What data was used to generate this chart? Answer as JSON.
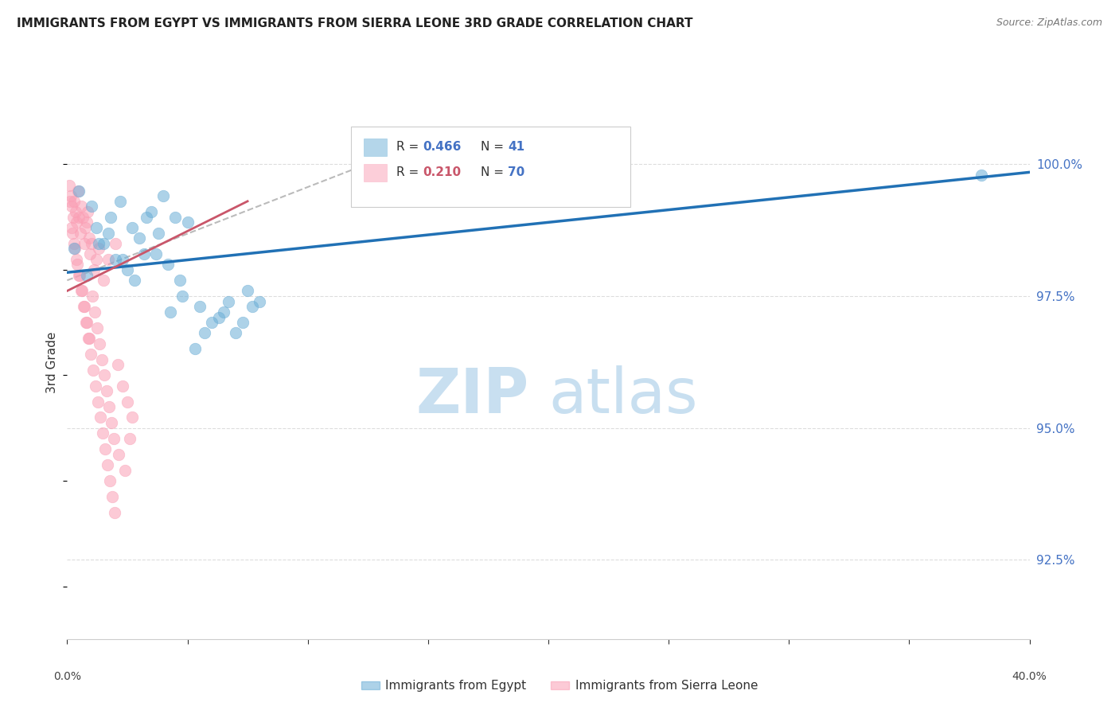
{
  "title": "IMMIGRANTS FROM EGYPT VS IMMIGRANTS FROM SIERRA LEONE 3RD GRADE CORRELATION CHART",
  "source": "Source: ZipAtlas.com",
  "ylabel": "3rd Grade",
  "x_range": [
    0.0,
    40.0
  ],
  "y_range": [
    91.0,
    101.5
  ],
  "legend_label_blue": "Immigrants from Egypt",
  "legend_label_pink": "Immigrants from Sierra Leone",
  "blue_color": "#6baed6",
  "pink_color": "#fa9fb5",
  "blue_line_color": "#2171b5",
  "pink_line_color": "#c9566a",
  "watermark_zip": "ZIP",
  "watermark_atlas": "atlas",
  "watermark_color_zip": "#c8dff0",
  "watermark_color_atlas": "#c8dff0",
  "blue_scatter_x": [
    0.5,
    1.0,
    1.2,
    1.5,
    1.8,
    2.0,
    2.2,
    2.5,
    2.8,
    3.0,
    3.2,
    3.5,
    3.8,
    4.0,
    4.2,
    4.5,
    4.8,
    5.0,
    5.5,
    6.0,
    6.5,
    7.0,
    7.5,
    8.0,
    0.3,
    0.8,
    1.3,
    1.7,
    2.3,
    2.7,
    3.3,
    3.7,
    4.3,
    4.7,
    5.3,
    5.7,
    6.3,
    6.7,
    7.3,
    7.7,
    38.0
  ],
  "blue_scatter_y": [
    99.5,
    99.2,
    98.8,
    98.5,
    99.0,
    98.2,
    99.3,
    98.0,
    97.8,
    98.6,
    98.3,
    99.1,
    98.7,
    99.4,
    98.1,
    99.0,
    97.5,
    98.9,
    97.3,
    97.0,
    97.2,
    96.8,
    97.6,
    97.4,
    98.4,
    97.9,
    98.5,
    98.7,
    98.2,
    98.8,
    99.0,
    98.3,
    97.2,
    97.8,
    96.5,
    96.8,
    97.1,
    97.4,
    97.0,
    97.3,
    99.8
  ],
  "pink_scatter_x": [
    0.1,
    0.15,
    0.2,
    0.25,
    0.3,
    0.35,
    0.4,
    0.45,
    0.5,
    0.55,
    0.6,
    0.65,
    0.7,
    0.75,
    0.8,
    0.85,
    0.9,
    0.95,
    1.0,
    1.1,
    1.2,
    1.3,
    1.5,
    1.7,
    2.0,
    0.12,
    0.22,
    0.32,
    0.42,
    0.52,
    0.62,
    0.72,
    0.82,
    0.92,
    1.05,
    1.15,
    1.25,
    1.35,
    1.45,
    1.55,
    1.65,
    1.75,
    1.85,
    1.95,
    2.1,
    2.3,
    2.5,
    2.7,
    0.18,
    0.28,
    0.38,
    0.48,
    0.58,
    0.68,
    0.78,
    0.88,
    0.98,
    1.08,
    1.18,
    1.28,
    1.38,
    1.48,
    1.58,
    1.68,
    1.78,
    1.88,
    1.98,
    2.15,
    2.4,
    2.6
  ],
  "pink_scatter_y": [
    99.6,
    99.4,
    99.2,
    99.0,
    99.3,
    99.1,
    98.9,
    99.5,
    99.0,
    98.7,
    99.2,
    99.0,
    98.5,
    98.8,
    98.9,
    99.1,
    98.6,
    98.3,
    98.5,
    98.0,
    98.2,
    98.4,
    97.8,
    98.2,
    98.5,
    99.3,
    98.7,
    98.4,
    98.1,
    97.9,
    97.6,
    97.3,
    97.0,
    96.7,
    97.5,
    97.2,
    96.9,
    96.6,
    96.3,
    96.0,
    95.7,
    95.4,
    95.1,
    94.8,
    96.2,
    95.8,
    95.5,
    95.2,
    98.8,
    98.5,
    98.2,
    97.9,
    97.6,
    97.3,
    97.0,
    96.7,
    96.4,
    96.1,
    95.8,
    95.5,
    95.2,
    94.9,
    94.6,
    94.3,
    94.0,
    93.7,
    93.4,
    94.5,
    94.2,
    94.8
  ],
  "blue_line_x": [
    0.0,
    40.0
  ],
  "blue_line_y": [
    97.95,
    99.85
  ],
  "pink_line_x": [
    0.0,
    7.5
  ],
  "pink_line_y": [
    97.6,
    99.3
  ],
  "dash_line_x": [
    0.0,
    13.0
  ],
  "dash_line_y": [
    97.8,
    100.1
  ],
  "yticks": [
    92.5,
    95.0,
    97.5,
    100.0
  ],
  "ytick_labels": [
    "92.5%",
    "95.0%",
    "97.5%",
    "100.0%"
  ],
  "xticks": [
    0,
    5,
    10,
    15,
    20,
    25,
    30,
    35,
    40
  ]
}
